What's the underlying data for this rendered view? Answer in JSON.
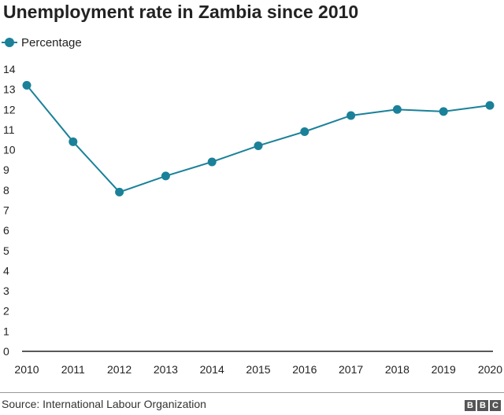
{
  "colors": {
    "series": "#1a8199",
    "axis": "#222222",
    "text": "#222222"
  },
  "chart_data": {
    "type": "line",
    "title": "Unemployment rate in Zambia since 2010",
    "legend": {
      "placement": "top-left",
      "entries": [
        "Percentage"
      ]
    },
    "x": [
      "2010",
      "2011",
      "2012",
      "2013",
      "2014",
      "2015",
      "2016",
      "2017",
      "2018",
      "2019",
      "2020"
    ],
    "series": [
      {
        "name": "Percentage",
        "values": [
          13.2,
          10.4,
          7.9,
          8.7,
          9.4,
          10.2,
          10.9,
          11.7,
          12.0,
          11.9,
          12.2
        ]
      }
    ],
    "xlabel": "",
    "ylabel": "",
    "ylim": [
      0,
      14
    ],
    "yticks": [
      "0",
      "1",
      "2",
      "3",
      "4",
      "5",
      "6",
      "7",
      "8",
      "9",
      "10",
      "11",
      "12",
      "13",
      "14"
    ],
    "grid": false
  },
  "footer": {
    "source": "Source: International Labour Organization",
    "logo": [
      "B",
      "B",
      "C"
    ]
  }
}
